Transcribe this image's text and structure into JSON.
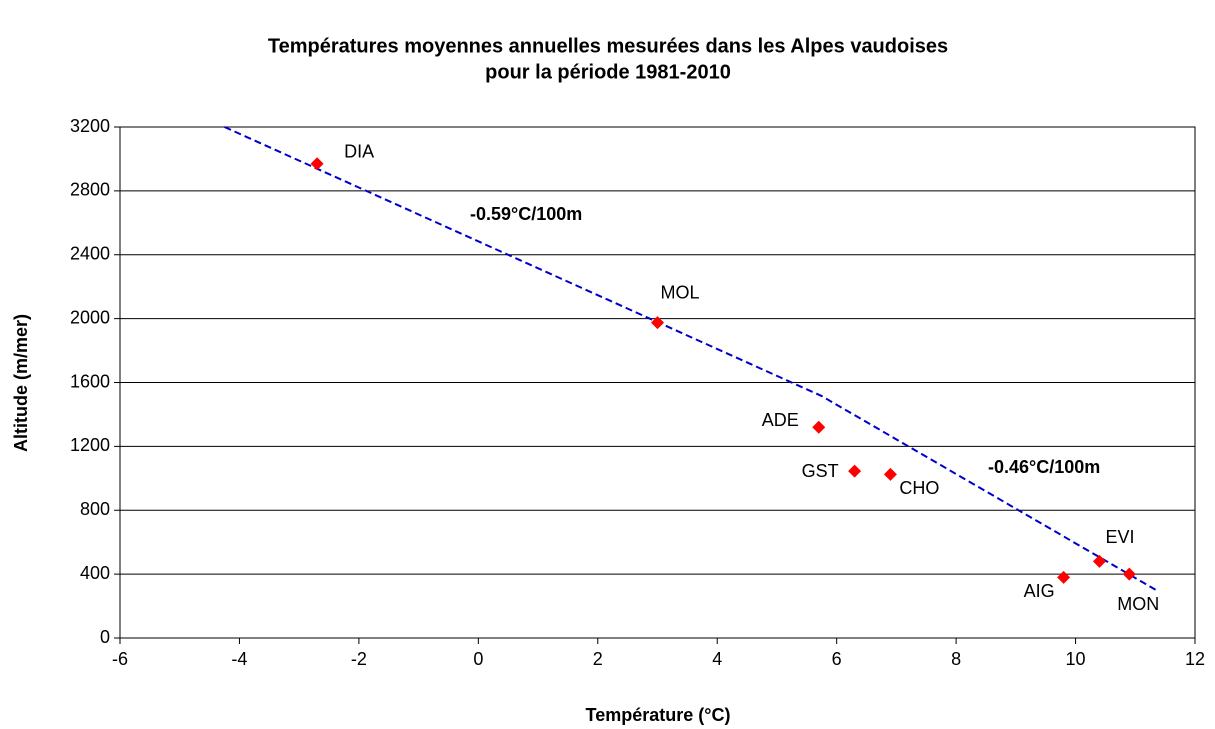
{
  "chart_data": {
    "type": "scatter",
    "title": [
      "Températures moyennes annuelles mesurées dans les Alpes vaudoises",
      "pour la période 1981-2010"
    ],
    "x_label": "Température (°C)",
    "y_label": "Altitude (m/mer)",
    "xlim": [
      -6,
      12
    ],
    "ylim": [
      0,
      3200
    ],
    "xticks": [
      -6,
      -4,
      -2,
      0,
      2,
      4,
      6,
      8,
      10,
      12
    ],
    "yticks": [
      0,
      400,
      800,
      1200,
      1600,
      2000,
      2400,
      2800,
      3200
    ],
    "grid": true,
    "series": [
      {
        "color": "#ff0000",
        "point_labels": [
          "DIA",
          "MOL",
          "ADE",
          "GST",
          "CHO",
          "AIG",
          "EVI",
          "MON"
        ],
        "x": [
          -2.7,
          3.0,
          5.7,
          6.3,
          6.9,
          9.8,
          10.4,
          10.9
        ],
        "values": [
          2970,
          1975,
          1320,
          1045,
          1025,
          380,
          480,
          400
        ]
      }
    ],
    "trend_line": {
      "color": "#0000cc",
      "x": [
        -4.25,
        5.75,
        11.35
      ],
      "y": [
        3200,
        1515,
        300
      ]
    },
    "annotations": [
      "-0.59°C/100m",
      "-0.46°C/100m"
    ]
  }
}
